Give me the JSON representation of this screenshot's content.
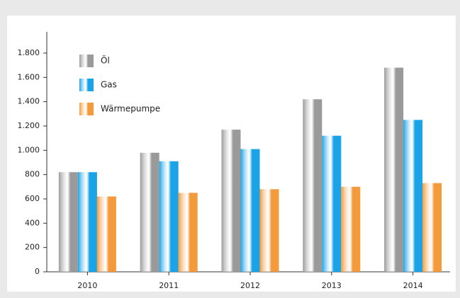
{
  "chart_data": {
    "type": "bar",
    "categories": [
      "2010",
      "2011",
      "2012",
      "2013",
      "2014"
    ],
    "series": [
      {
        "name": "Öl",
        "color": "#9a9a9a",
        "values": [
          820,
          980,
          1170,
          1420,
          1680
        ]
      },
      {
        "name": "Gas",
        "color": "#1aa3e6",
        "values": [
          820,
          910,
          1010,
          1120,
          1250
        ]
      },
      {
        "name": "Wärmepumpe",
        "color": "#f39a3c",
        "values": [
          620,
          650,
          680,
          700,
          730
        ]
      }
    ],
    "ylim": [
      0,
      1800
    ],
    "yticks": [
      0,
      200,
      400,
      600,
      800,
      {
        "value": 1000,
        "label": "1.000"
      },
      {
        "value": 1200,
        "label": "1.200"
      },
      {
        "value": 1400,
        "label": "1.400"
      },
      {
        "value": 1600,
        "label": "1.600"
      },
      {
        "value": 1800,
        "label": "1.800"
      }
    ],
    "legend": "upper left"
  }
}
